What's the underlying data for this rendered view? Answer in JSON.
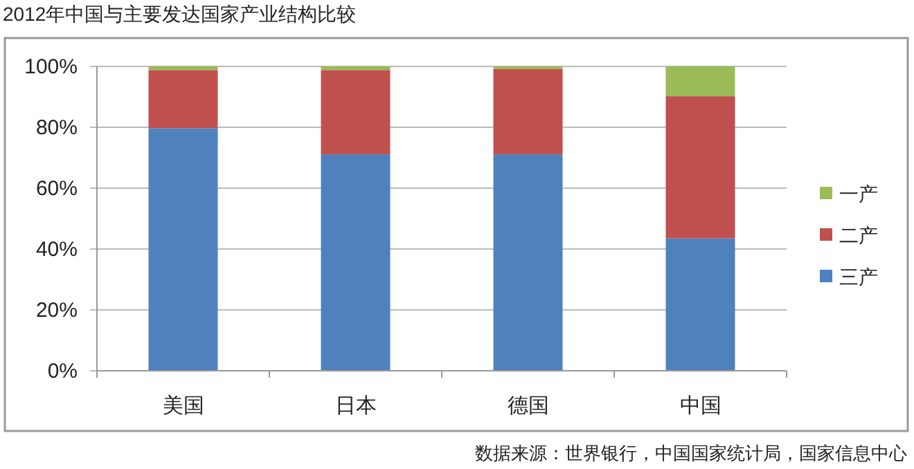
{
  "chart_data": {
    "type": "bar",
    "stacked": true,
    "title": "2012年中国与主要发达国家产业结构比较",
    "categories": [
      "美国",
      "日本",
      "德国",
      "中国"
    ],
    "series": [
      {
        "name": "三产",
        "color": "#4f81bd",
        "values": [
          79.7,
          71.1,
          71.1,
          43.5
        ]
      },
      {
        "name": "二产",
        "color": "#c0504d",
        "values": [
          19.1,
          27.7,
          28.0,
          46.7
        ]
      },
      {
        "name": "一产",
        "color": "#9bbb59",
        "values": [
          1.2,
          1.2,
          0.9,
          9.8
        ]
      }
    ],
    "ylim": [
      0,
      100
    ],
    "yticks": [
      {
        "value": 0,
        "label": "0%"
      },
      {
        "value": 20,
        "label": "20%"
      },
      {
        "value": 40,
        "label": "40%"
      },
      {
        "value": 60,
        "label": "60%"
      },
      {
        "value": 80,
        "label": "80%"
      },
      {
        "value": 100,
        "label": "100%"
      }
    ],
    "grid": "y",
    "legend": "right",
    "annotations": [
      "数据来源：世界银行，中国国家统计局，国家信息中心"
    ]
  }
}
